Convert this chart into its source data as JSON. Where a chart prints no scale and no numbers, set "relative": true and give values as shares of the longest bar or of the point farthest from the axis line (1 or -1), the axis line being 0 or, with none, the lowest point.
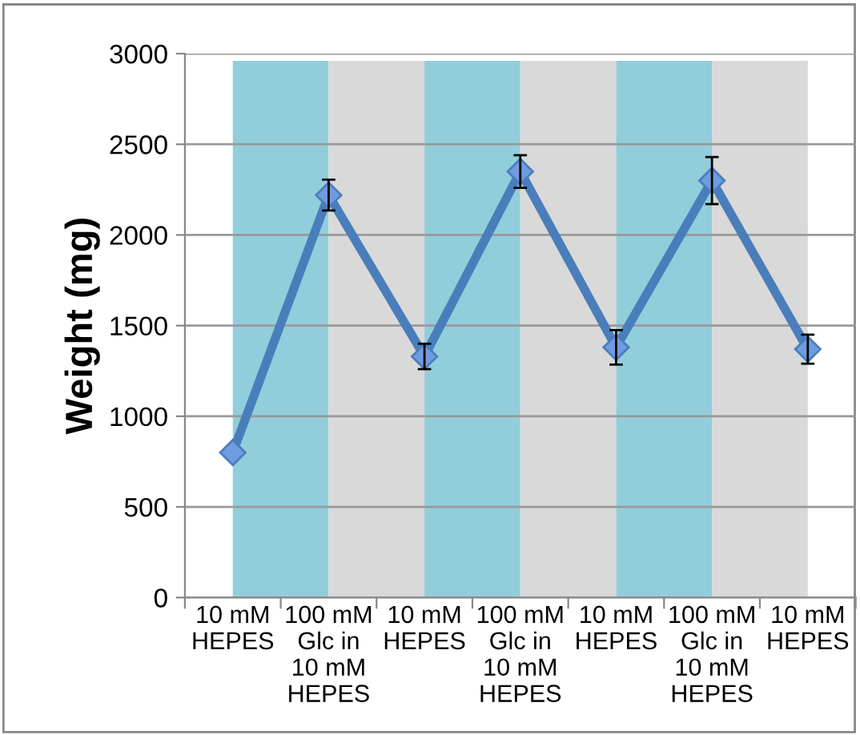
{
  "chart_data": [
    {
      "type": "bar",
      "relative": true,
      "categories": [
        null,
        null,
        null,
        null,
        null,
        null
      ],
      "values": [
        1,
        1,
        1,
        1,
        1,
        1
      ],
      "colors": [
        "#92cddc",
        "#d9d9d9",
        "#92cddc",
        "#d9d9d9",
        "#92cddc",
        "#d9d9d9"
      ]
    },
    {
      "type": "line",
      "ylabel": "Weight (mg)",
      "categories": [
        "10 mM\nHEPES",
        "100 mM\nGlc in\n10 mM\nHEPES",
        "10 mM\nHEPES",
        "100 mM\nGlc in\n10 mM\nHEPES",
        "10 mM\nHEPES",
        "100 mM\nGlc in\n10 mM\nHEPES",
        "10 mM\nHEPES"
      ],
      "series": [
        {
          "color": "#4a7ebb",
          "values": [
            800,
            2220,
            1330,
            2350,
            1380,
            2300,
            1370
          ],
          "errors": [
            null,
            85,
            70,
            90,
            95,
            130,
            80
          ]
        }
      ],
      "ylim": [
        0,
        3000
      ],
      "yticks": [
        0,
        500,
        1000,
        1500,
        2000,
        2500,
        3000
      ],
      "grid": "y",
      "marker": "diamond",
      "line_style": "solid"
    }
  ]
}
